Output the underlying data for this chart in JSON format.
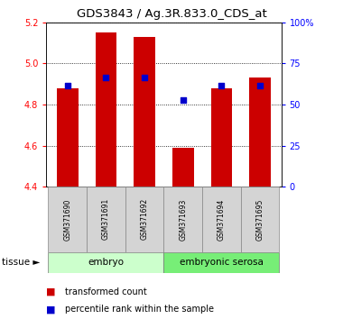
{
  "title": "GDS3843 / Ag.3R.833.0_CDS_at",
  "samples": [
    "GSM371690",
    "GSM371691",
    "GSM371692",
    "GSM371693",
    "GSM371694",
    "GSM371695"
  ],
  "red_values": [
    4.88,
    5.15,
    5.13,
    4.59,
    4.88,
    4.93
  ],
  "blue_values": [
    4.89,
    4.93,
    4.93,
    4.82,
    4.89,
    4.89
  ],
  "ylim": [
    4.4,
    5.2
  ],
  "yticks_left": [
    4.4,
    4.6,
    4.8,
    5.0,
    5.2
  ],
  "yticks_right_pct": [
    0,
    25,
    50,
    75,
    100
  ],
  "yticks_right_labels": [
    "0",
    "25",
    "50",
    "75",
    "100%"
  ],
  "bar_width": 0.55,
  "bar_color": "#cc0000",
  "dot_color": "#0000cc",
  "tissue_data": [
    {
      "label": "embryo",
      "xstart": -0.5,
      "xend": 2.5,
      "color": "#ccffcc"
    },
    {
      "label": "embryonic serosa",
      "xstart": 2.5,
      "xend": 5.5,
      "color": "#77ee77"
    }
  ],
  "legend_items": [
    {
      "label": "transformed count",
      "color": "#cc0000"
    },
    {
      "label": "percentile rank within the sample",
      "color": "#0000cc"
    }
  ],
  "title_fontsize": 9.5,
  "tick_fontsize": 7,
  "sample_fontsize": 5.5,
  "tissue_fontsize": 7.5,
  "legend_fontsize": 7,
  "tissue_label_fontsize": 7.5
}
